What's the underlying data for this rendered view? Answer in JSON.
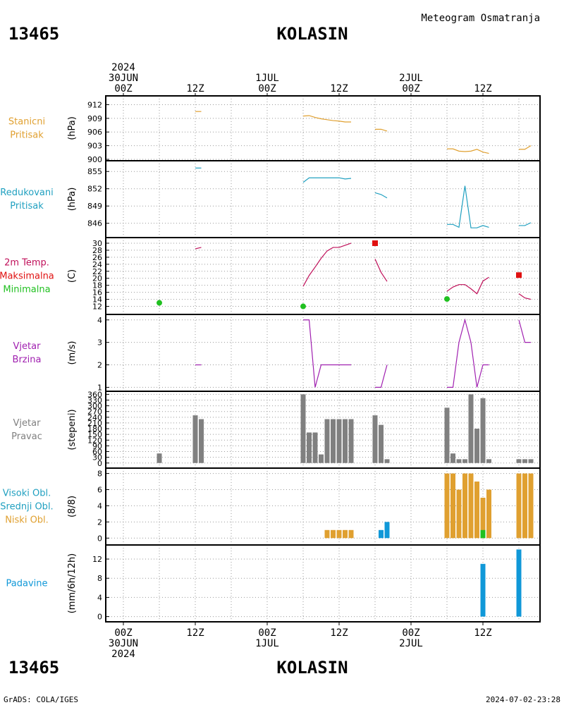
{
  "station": {
    "id": "13465",
    "name": "KOLASIN"
  },
  "title": "Meteogram Osmatranja",
  "footer": {
    "left": "GrADS: COLA/IGES",
    "right": "2024-07-02-23:28"
  },
  "time_axis": {
    "top_labels": [
      {
        "hour": 0,
        "lines": [
          "2024",
          "30JUN",
          "00Z"
        ]
      },
      {
        "hour": 12,
        "lines": [
          "12Z"
        ]
      },
      {
        "hour": 24,
        "lines": [
          "1JUL",
          "00Z"
        ]
      },
      {
        "hour": 36,
        "lines": [
          "12Z"
        ]
      },
      {
        "hour": 48,
        "lines": [
          "2JUL",
          "00Z"
        ]
      },
      {
        "hour": 60,
        "lines": [
          "12Z"
        ]
      }
    ],
    "bottom_labels": [
      {
        "hour": 0,
        "lines": [
          "00Z",
          "30JUN",
          "2024"
        ]
      },
      {
        "hour": 12,
        "lines": [
          "12Z"
        ]
      },
      {
        "hour": 24,
        "lines": [
          "00Z",
          "1JUL"
        ]
      },
      {
        "hour": 36,
        "lines": [
          "12Z"
        ]
      },
      {
        "hour": 48,
        "lines": [
          "00Z",
          "2JUL"
        ]
      },
      {
        "hour": 60,
        "lines": [
          "12Z"
        ]
      }
    ]
  },
  "colors": {
    "orange": "#e0a030",
    "cyan": "#20a0c0",
    "crimson": "#c0105a",
    "green": "#20c020",
    "purple": "#a020b0",
    "gray": "#808080",
    "blue": "#1098d8",
    "red": "#e01010"
  },
  "chart_data": [
    {
      "type": "line",
      "title": "",
      "labels": [
        "Stanicni",
        "Pritisak"
      ],
      "ylabel": "(hPa)",
      "ylim": [
        900,
        913
      ],
      "yticks": [
        900,
        903,
        906,
        909,
        912
      ],
      "series": [
        {
          "color": "orange",
          "segments": [
            [
              [
                12,
                910.5
              ],
              [
                13,
                910.5
              ]
            ],
            [
              [
                30,
                909.5
              ],
              [
                31,
                909.6
              ],
              [
                32,
                909.2
              ],
              [
                33,
                908.9
              ],
              [
                34,
                908.7
              ],
              [
                35,
                908.5
              ],
              [
                36,
                908.4
              ],
              [
                37,
                908.2
              ],
              [
                38,
                908.2
              ]
            ],
            [
              [
                42,
                906.6
              ],
              [
                43,
                906.6
              ],
              [
                44,
                906.2
              ]
            ],
            [
              [
                54,
                902.3
              ],
              [
                55,
                902.3
              ],
              [
                56,
                901.8
              ],
              [
                57,
                901.7
              ],
              [
                58,
                901.8
              ],
              [
                59,
                902.2
              ],
              [
                60,
                901.6
              ],
              [
                61,
                901.3
              ]
            ],
            [
              [
                66,
                902.2
              ],
              [
                67,
                902.2
              ],
              [
                68,
                903.0
              ]
            ]
          ]
        }
      ]
    },
    {
      "type": "line",
      "title": "",
      "labels": [
        "Redukovani",
        "Pritisak"
      ],
      "ylabel": "(hPa)",
      "ylim": [
        844,
        856.5
      ],
      "yticks": [
        846,
        849,
        852,
        855
      ],
      "series": [
        {
          "color": "cyan",
          "segments": [
            [
              [
                12,
                855.6
              ],
              [
                13,
                855.6
              ]
            ],
            [
              [
                30,
                853.1
              ],
              [
                31,
                853.9
              ],
              [
                32,
                853.9
              ],
              [
                33,
                853.9
              ],
              [
                34,
                853.9
              ],
              [
                35,
                853.9
              ],
              [
                36,
                853.9
              ],
              [
                37,
                853.7
              ],
              [
                38,
                853.8
              ]
            ],
            [
              [
                42,
                851.3
              ],
              [
                43,
                851.0
              ],
              [
                44,
                850.4
              ]
            ],
            [
              [
                54,
                845.8
              ],
              [
                55,
                845.8
              ],
              [
                56,
                845.3
              ],
              [
                57,
                852.5
              ],
              [
                58,
                845.2
              ],
              [
                59,
                845.2
              ],
              [
                60,
                845.6
              ],
              [
                61,
                845.3
              ]
            ],
            [
              [
                66,
                845.6
              ],
              [
                67,
                845.6
              ],
              [
                68,
                846.1
              ]
            ]
          ]
        }
      ]
    },
    {
      "type": "line",
      "title": "",
      "labels": [
        "2m Temp.",
        "Maksimalna",
        "Minimalna"
      ],
      "label_colors": [
        "crimson",
        "red",
        "green"
      ],
      "ylabel": "(C)",
      "ylim": [
        10.5,
        31
      ],
      "yticks": [
        12,
        14,
        16,
        18,
        20,
        22,
        24,
        26,
        28,
        30
      ],
      "series": [
        {
          "color": "crimson",
          "segments": [
            [
              [
                12,
                28.4
              ],
              [
                13,
                28.8
              ]
            ],
            [
              [
                30,
                17.7
              ],
              [
                31,
                20.8
              ],
              [
                32,
                23.2
              ],
              [
                33,
                25.7
              ],
              [
                34,
                27.8
              ],
              [
                35,
                28.8
              ],
              [
                36,
                28.8
              ],
              [
                37,
                29.4
              ],
              [
                38,
                30.0
              ]
            ],
            [
              [
                42,
                25.5
              ],
              [
                43,
                21.7
              ],
              [
                44,
                19.1
              ]
            ],
            [
              [
                54,
                16.3
              ],
              [
                55,
                17.5
              ],
              [
                56,
                18.2
              ],
              [
                57,
                18.2
              ],
              [
                58,
                17.0
              ],
              [
                59,
                15.6
              ],
              [
                60,
                19.2
              ],
              [
                61,
                20.3
              ]
            ],
            [
              [
                66,
                15.6
              ],
              [
                67,
                14.4
              ],
              [
                68,
                14.0
              ]
            ]
          ]
        },
        {
          "color": "red",
          "marker": "square",
          "points": [
            [
              42,
              30.0
            ],
            [
              66,
              20.9
            ]
          ]
        },
        {
          "color": "green",
          "marker": "circle",
          "points": [
            [
              6,
              13.0
            ],
            [
              30,
              12.0
            ],
            [
              54,
              14.1
            ]
          ]
        }
      ]
    },
    {
      "type": "line",
      "title": "",
      "labels": [
        "Vjetar",
        "Brzina"
      ],
      "ylabel": "(m/s)",
      "ylim": [
        0.95,
        4.15
      ],
      "yticks": [
        1,
        2,
        3,
        4
      ],
      "series": [
        {
          "color": "purple",
          "segments": [
            [
              [
                12,
                2
              ],
              [
                13,
                2
              ]
            ],
            [
              [
                30,
                4
              ],
              [
                31,
                4
              ],
              [
                32,
                1
              ],
              [
                33,
                2
              ],
              [
                34,
                2
              ],
              [
                35,
                2
              ],
              [
                36,
                2
              ],
              [
                37,
                2
              ],
              [
                38,
                2
              ]
            ],
            [
              [
                42,
                1
              ],
              [
                43,
                1
              ],
              [
                44,
                2
              ]
            ],
            [
              [
                54,
                1
              ],
              [
                55,
                1
              ],
              [
                56,
                3
              ],
              [
                57,
                4
              ],
              [
                58,
                3
              ],
              [
                59,
                1
              ],
              [
                60,
                2
              ],
              [
                61,
                2
              ]
            ],
            [
              [
                66,
                4
              ],
              [
                67,
                3
              ],
              [
                68,
                3
              ]
            ]
          ]
        }
      ]
    },
    {
      "type": "bar",
      "title": "",
      "labels": [
        "Vjetar",
        "Pravac"
      ],
      "ylabel": "(stepeni)",
      "ylim": [
        -12,
        365
      ],
      "yticks": [
        0,
        30,
        60,
        90,
        120,
        150,
        180,
        210,
        240,
        270,
        300,
        330,
        360
      ],
      "series": [
        {
          "color": "gray",
          "bars": [
            [
              6,
              50
            ],
            [
              12,
              250
            ],
            [
              13,
              230
            ],
            [
              30,
              360
            ],
            [
              31,
              160
            ],
            [
              32,
              160
            ],
            [
              33,
              45
            ],
            [
              34,
              230
            ],
            [
              35,
              230
            ],
            [
              36,
              230
            ],
            [
              37,
              230
            ],
            [
              38,
              230
            ],
            [
              42,
              250
            ],
            [
              43,
              200
            ],
            [
              44,
              20
            ],
            [
              54,
              290
            ],
            [
              55,
              50
            ],
            [
              56,
              20
            ],
            [
              57,
              20
            ],
            [
              58,
              360
            ],
            [
              59,
              180
            ],
            [
              60,
              340
            ],
            [
              61,
              20
            ],
            [
              66,
              20
            ],
            [
              67,
              20
            ],
            [
              68,
              20
            ]
          ]
        }
      ]
    },
    {
      "type": "bar",
      "title": "",
      "labels": [
        "Visoki Obl.",
        "Srednji Obl.",
        "Niski Obl."
      ],
      "label_colors": [
        "cyan",
        "cyan",
        "orange"
      ],
      "ylabel": "(8/8)",
      "ylim": [
        -0.5,
        8.4
      ],
      "yticks": [
        0,
        2,
        4,
        6,
        8
      ],
      "series": [
        {
          "color": "orange",
          "bars": [
            [
              34,
              1
            ],
            [
              35,
              1
            ],
            [
              36,
              1
            ],
            [
              37,
              1
            ],
            [
              38,
              1
            ],
            [
              54,
              8
            ],
            [
              55,
              8
            ],
            [
              56,
              6
            ],
            [
              57,
              8
            ],
            [
              58,
              8
            ],
            [
              59,
              7
            ],
            [
              60,
              5
            ],
            [
              61,
              6
            ],
            [
              66,
              8
            ],
            [
              67,
              8
            ],
            [
              68,
              8
            ]
          ]
        },
        {
          "color": "blue",
          "bars": [
            [
              43,
              1
            ],
            [
              44,
              2
            ]
          ]
        },
        {
          "color": "green",
          "bars": [
            [
              60,
              1
            ]
          ]
        }
      ]
    },
    {
      "type": "bar",
      "title": "",
      "labels": [
        "Padavine"
      ],
      "label_colors": [
        "blue"
      ],
      "ylabel": "(mm/6h/12h)",
      "ylim": [
        -0.5,
        14.5
      ],
      "yticks": [
        0,
        4,
        8,
        12
      ],
      "series": [
        {
          "color": "blue",
          "bars": [
            [
              60,
              11
            ],
            [
              66,
              14
            ]
          ]
        }
      ]
    }
  ]
}
